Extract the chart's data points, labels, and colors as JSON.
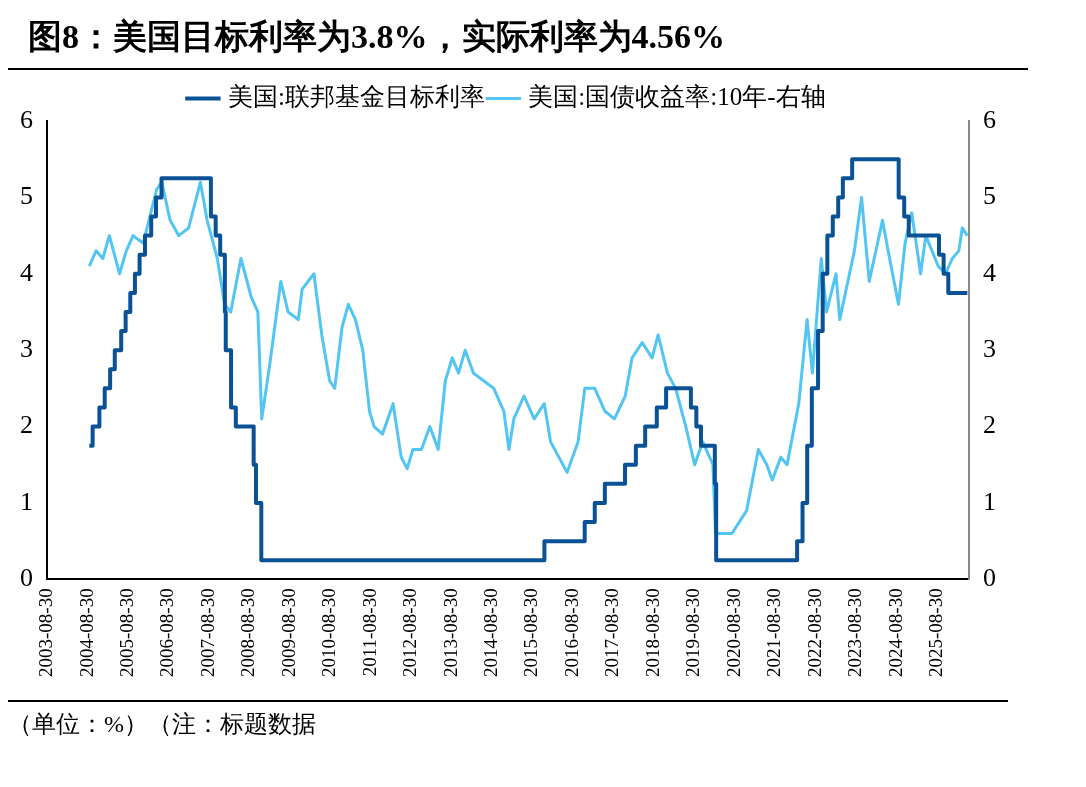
{
  "chart_data": {
    "type": "line",
    "title": "图8：美国目标利率为3.8%，实际利率为4.56%",
    "xlim": [
      "2003-08-30",
      "2026-06-15"
    ],
    "xticks": [
      "2003-08-30",
      "2004-08-30",
      "2005-08-30",
      "2006-08-30",
      "2007-08-30",
      "2008-08-30",
      "2009-08-30",
      "2010-08-30",
      "2011-08-30",
      "2012-08-30",
      "2013-08-30",
      "2014-08-30",
      "2015-08-30",
      "2016-08-30",
      "2017-08-30",
      "2018-08-30",
      "2019-08-30",
      "2020-08-30",
      "2021-08-30",
      "2022-08-30",
      "2023-08-30",
      "2024-08-30",
      "2025-08-30"
    ],
    "ylim": [
      0,
      6
    ],
    "yticks": [
      0,
      1,
      2,
      3,
      4,
      5,
      6
    ],
    "y2lim": [
      0,
      6
    ],
    "y2ticks": [
      0,
      1,
      2,
      3,
      4,
      5,
      6
    ],
    "grid": false,
    "legend": "top",
    "marker": "none",
    "series": [
      {
        "name": "美国:联邦基金目标利率",
        "type": "step",
        "color": "#0a5196",
        "x": [
          "2004-09-15",
          "2004-10-15",
          "2004-12-15",
          "2005-02-01",
          "2005-03-22",
          "2005-05-03",
          "2005-06-30",
          "2005-08-09",
          "2005-09-20",
          "2005-11-01",
          "2005-12-13",
          "2006-01-31",
          "2006-03-28",
          "2006-05-10",
          "2006-06-29",
          "2007-09-18",
          "2007-10-31",
          "2007-12-11",
          "2008-01-22",
          "2008-01-30",
          "2008-03-18",
          "2008-04-30",
          "2008-10-08",
          "2008-10-29",
          "2008-12-16",
          "2015-12-16",
          "2016-12-14",
          "2017-03-15",
          "2017-06-14",
          "2017-12-13",
          "2018-03-21",
          "2018-06-13",
          "2018-09-26",
          "2018-12-19",
          "2019-07-31",
          "2019-09-18",
          "2019-10-30",
          "2020-03-03",
          "2020-03-15",
          "2022-03-16",
          "2022-05-04",
          "2022-06-15",
          "2022-07-27",
          "2022-09-21",
          "2022-11-02",
          "2022-12-14",
          "2023-02-01",
          "2023-03-22",
          "2023-05-03",
          "2023-07-26",
          "2024-09-18",
          "2024-11-07",
          "2024-12-18",
          "2025-09-17",
          "2025-10-29",
          "2025-12-10",
          "2026-05-31"
        ],
        "values": [
          1.75,
          2,
          2.25,
          2.5,
          2.75,
          3,
          3.25,
          3.5,
          3.75,
          4,
          4.25,
          4.5,
          4.75,
          5,
          5.25,
          4.75,
          4.5,
          4.25,
          3.5,
          3,
          2.25,
          2,
          1.5,
          1,
          0.25,
          0.5,
          0.75,
          1,
          1.25,
          1.5,
          1.75,
          2,
          2.25,
          2.5,
          2.25,
          2,
          1.75,
          1.25,
          0.25,
          0.5,
          1,
          1.75,
          2.5,
          3.25,
          4,
          4.5,
          4.75,
          5,
          5.25,
          5.5,
          5,
          4.75,
          4.5,
          4.25,
          4,
          3.75,
          3.75
        ]
      },
      {
        "name": "美国:国债收益率:10年-右轴",
        "type": "line",
        "axis": "y2",
        "color": "#52c5f2",
        "x": [
          "2004-09-15",
          "2004-11-15",
          "2005-01-15",
          "2005-03-15",
          "2005-06-15",
          "2005-08-15",
          "2005-10-15",
          "2006-01-15",
          "2006-05-15",
          "2006-07-01",
          "2006-09-15",
          "2006-12-01",
          "2007-03-01",
          "2007-06-15",
          "2007-08-15",
          "2007-11-15",
          "2008-01-20",
          "2008-03-15",
          "2008-06-15",
          "2008-09-15",
          "2008-11-15",
          "2008-12-20",
          "2009-03-01",
          "2009-06-10",
          "2009-08-15",
          "2009-11-15",
          "2009-12-20",
          "2010-04-05",
          "2010-06-15",
          "2010-08-25",
          "2010-10-10",
          "2010-12-15",
          "2011-02-10",
          "2011-04-15",
          "2011-06-20",
          "2011-08-20",
          "2011-10-01",
          "2011-12-15",
          "2012-03-20",
          "2012-06-01",
          "2012-07-25",
          "2012-09-15",
          "2012-12-01",
          "2013-02-15",
          "2013-05-01",
          "2013-07-05",
          "2013-09-05",
          "2013-11-01",
          "2013-12-31",
          "2014-03-15",
          "2014-06-15",
          "2014-09-15",
          "2014-12-15",
          "2015-01-30",
          "2015-03-15",
          "2015-06-15",
          "2015-09-15",
          "2015-12-15",
          "2016-02-10",
          "2016-07-08",
          "2016-10-15",
          "2016-12-15",
          "2017-03-15",
          "2017-06-15",
          "2017-09-08",
          "2017-12-15",
          "2018-02-15",
          "2018-05-17",
          "2018-08-15",
          "2018-10-08",
          "2018-12-31",
          "2019-03-15",
          "2019-06-15",
          "2019-09-03",
          "2019-11-15",
          "2020-02-15",
          "2020-03-09",
          "2020-08-04",
          "2020-12-15",
          "2021-03-31",
          "2021-06-15",
          "2021-08-04",
          "2021-10-20",
          "2021-12-15",
          "2022-03-31",
          "2022-06-14",
          "2022-08-01",
          "2022-10-20",
          "2022-12-07",
          "2023-03-02",
          "2023-04-05",
          "2023-08-15",
          "2023-10-19",
          "2023-12-27",
          "2024-04-25",
          "2024-06-15",
          "2024-09-16",
          "2024-11-15",
          "2025-01-14",
          "2025-04-04",
          "2025-05-21",
          "2025-09-10",
          "2025-11-15",
          "2026-01-15",
          "2026-03-15",
          "2026-04-15",
          "2026-05-31"
        ],
        "values": [
          4.1,
          4.3,
          4.2,
          4.5,
          4.0,
          4.3,
          4.5,
          4.4,
          5.1,
          5.2,
          4.7,
          4.5,
          4.6,
          5.2,
          4.7,
          4.2,
          3.6,
          3.5,
          4.2,
          3.7,
          3.5,
          2.1,
          2.8,
          3.9,
          3.5,
          3.4,
          3.8,
          4.0,
          3.2,
          2.6,
          2.5,
          3.3,
          3.6,
          3.4,
          3.0,
          2.2,
          2.0,
          1.9,
          2.3,
          1.6,
          1.45,
          1.7,
          1.7,
          2.0,
          1.7,
          2.6,
          2.9,
          2.7,
          3.0,
          2.7,
          2.6,
          2.5,
          2.2,
          1.7,
          2.1,
          2.4,
          2.1,
          2.3,
          1.8,
          1.4,
          1.8,
          2.5,
          2.5,
          2.2,
          2.1,
          2.4,
          2.9,
          3.1,
          2.9,
          3.2,
          2.7,
          2.5,
          2.0,
          1.5,
          1.8,
          1.5,
          0.6,
          0.6,
          0.9,
          1.7,
          1.5,
          1.3,
          1.6,
          1.5,
          2.3,
          3.4,
          2.7,
          4.2,
          3.5,
          4.0,
          3.4,
          4.3,
          5.0,
          3.9,
          4.7,
          4.3,
          3.6,
          4.4,
          4.8,
          4.0,
          4.5,
          4.1,
          4.0,
          4.2,
          4.3,
          4.6,
          4.5
        ]
      }
    ],
    "annotations": [
      "（单位：%）（注：标题数据"
    ]
  }
}
